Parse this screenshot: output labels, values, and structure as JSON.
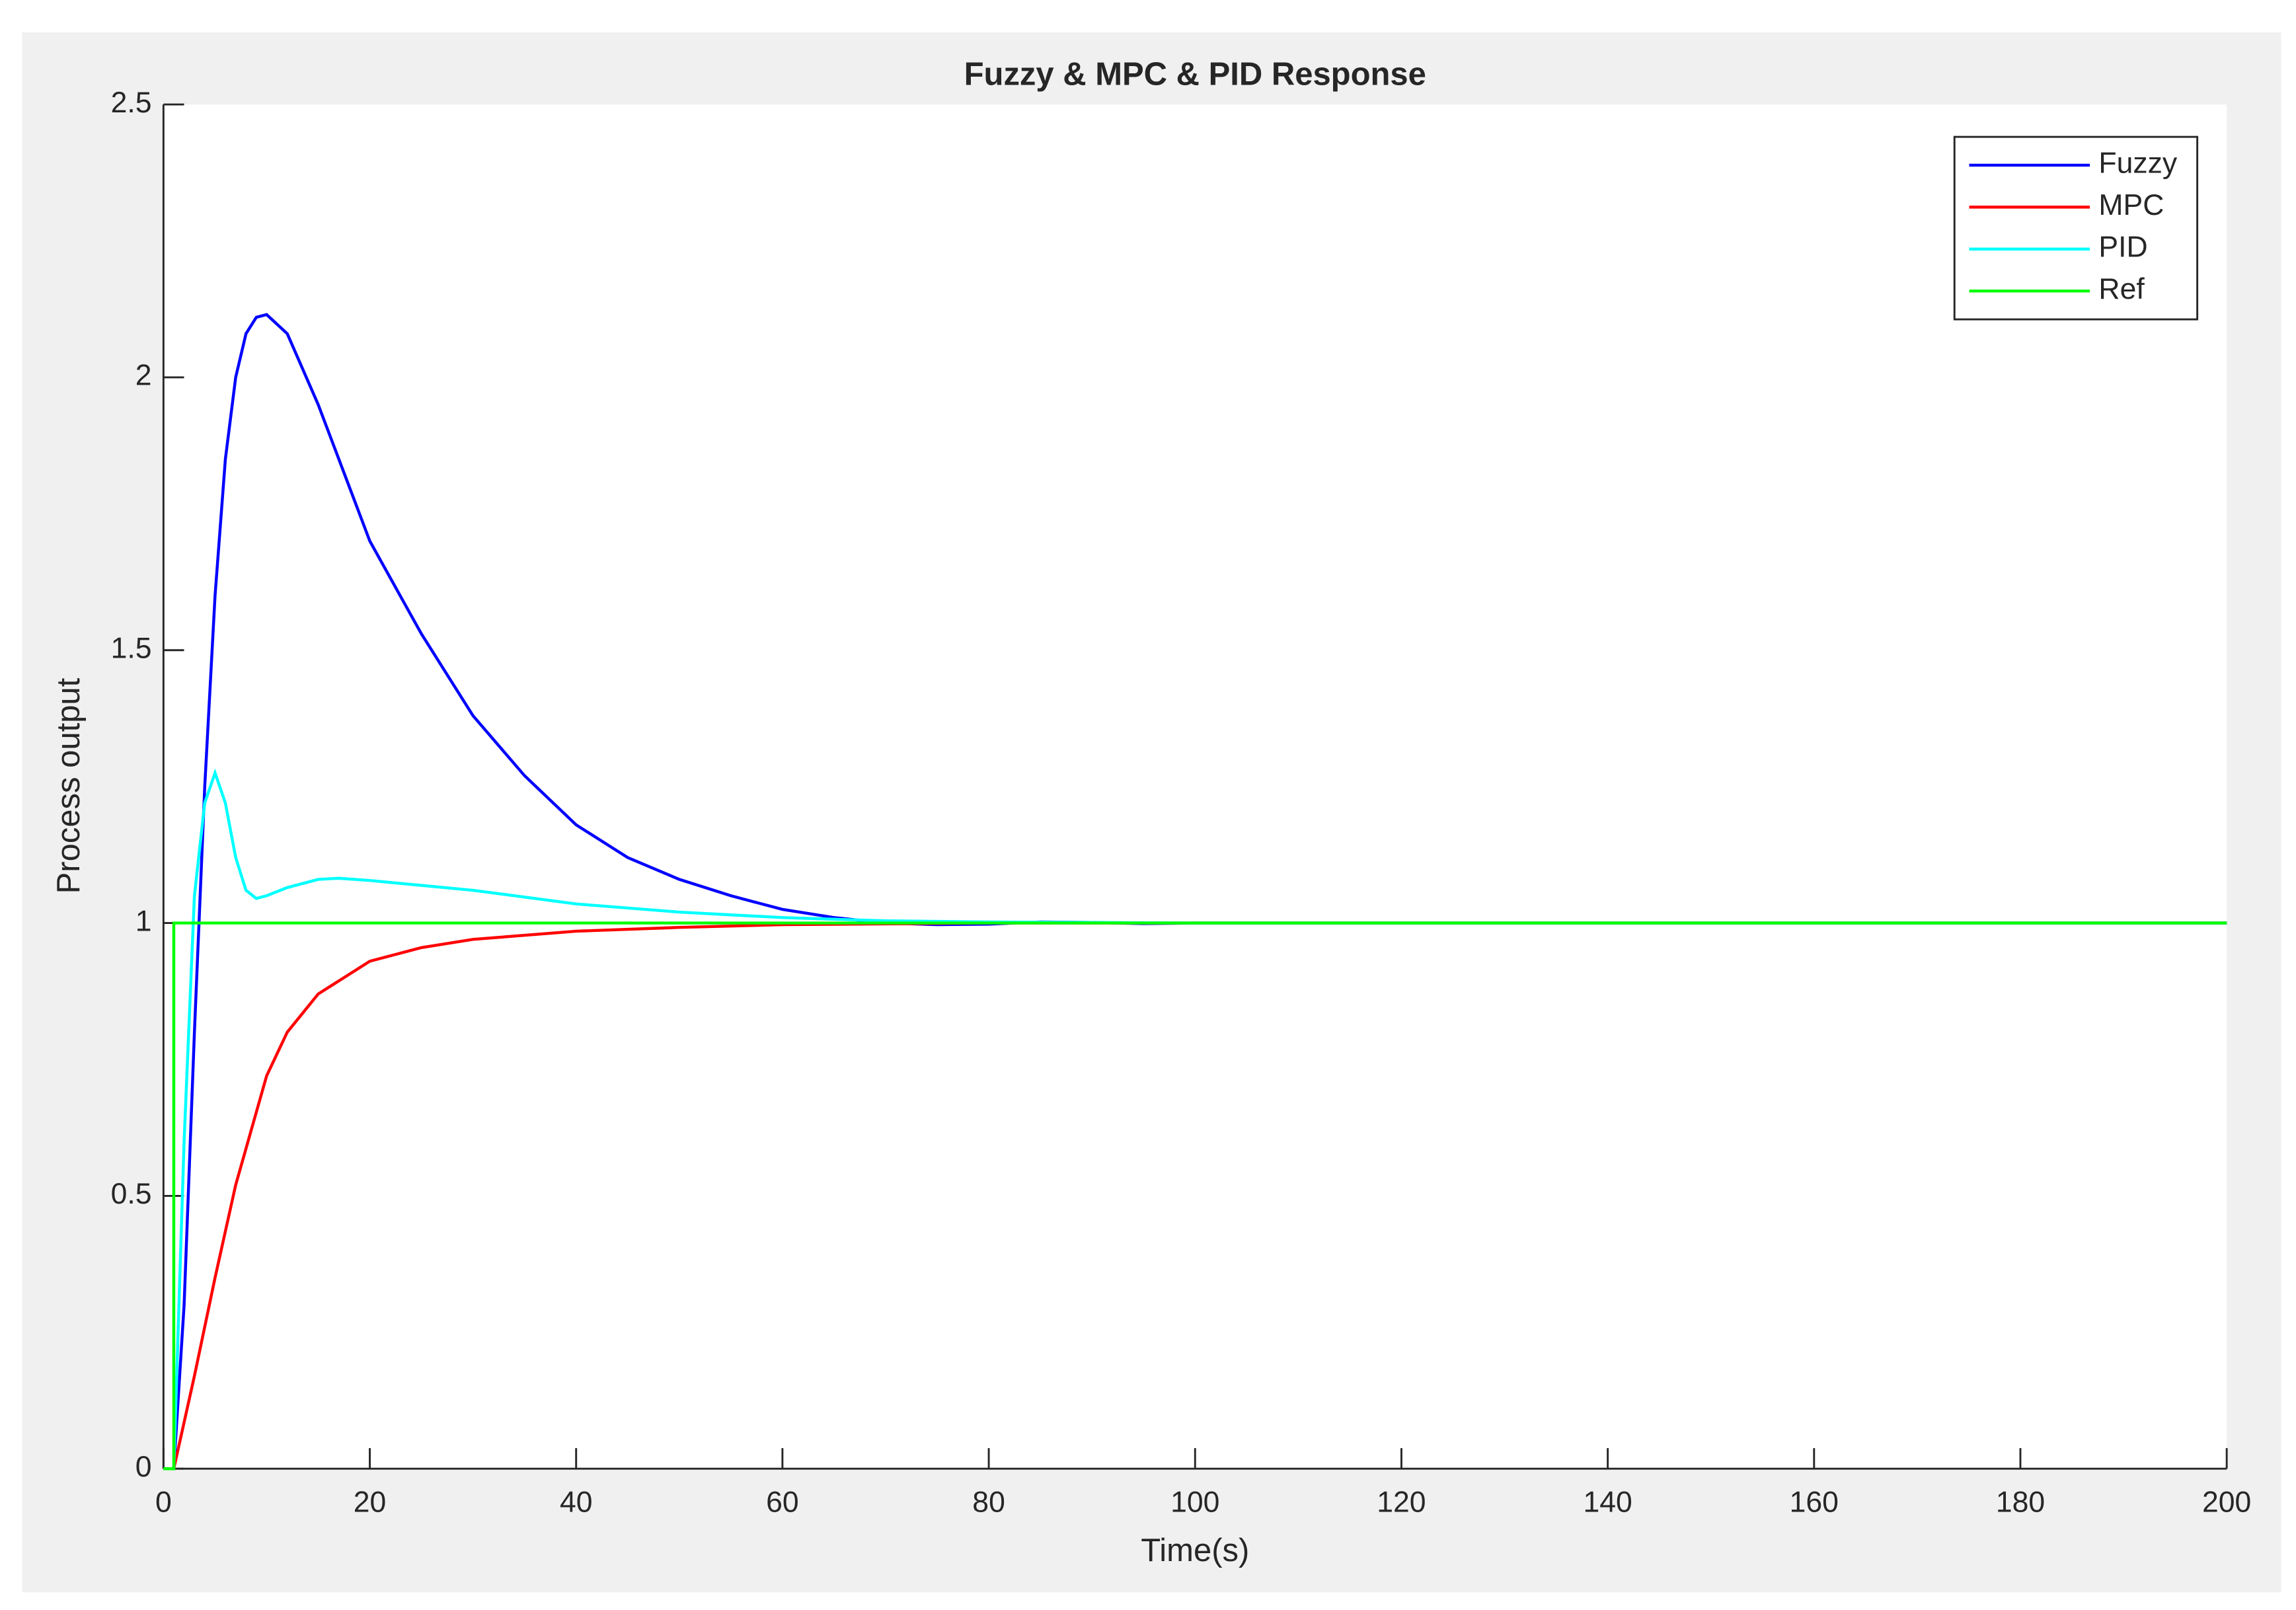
{
  "chart_data": {
    "type": "line",
    "title": "Fuzzy & MPC & PID Response",
    "x_label": "Time(s)",
    "y_label": "Process output",
    "xlim": [
      0,
      200
    ],
    "xticks": [
      0,
      20,
      40,
      60,
      80,
      100,
      120,
      140,
      160,
      180,
      200
    ],
    "ylim": [
      0,
      2.5
    ],
    "yticks": [
      0,
      0.5,
      1,
      1.5,
      2,
      2.5
    ],
    "grid": false,
    "legend": "upper right",
    "series": [
      {
        "name": "Fuzzy",
        "color": "#0000ff",
        "x": [
          0,
          1,
          2,
          3,
          4,
          5,
          6,
          7,
          8,
          9,
          10,
          12,
          15,
          20,
          25,
          30,
          35,
          40,
          45,
          50,
          55,
          60,
          65,
          70,
          75,
          80,
          85,
          90,
          95,
          100,
          120,
          150,
          200
        ],
        "values": [
          0,
          0,
          0.3,
          0.8,
          1.25,
          1.6,
          1.85,
          2.0,
          2.08,
          2.11,
          2.115,
          2.08,
          1.95,
          1.7,
          1.53,
          1.38,
          1.27,
          1.18,
          1.12,
          1.08,
          1.05,
          1.025,
          1.01,
          1.0,
          0.997,
          0.998,
          1.002,
          1.001,
          0.999,
          1.0,
          1.0,
          1.0,
          1.0
        ]
      },
      {
        "name": "MPC",
        "color": "#ff0000",
        "x": [
          0,
          1,
          3,
          5,
          7,
          10,
          12,
          15,
          20,
          25,
          30,
          40,
          50,
          60,
          80,
          200
        ],
        "values": [
          0,
          0,
          0.17,
          0.35,
          0.52,
          0.72,
          0.8,
          0.87,
          0.93,
          0.955,
          0.97,
          0.985,
          0.992,
          0.997,
          1.0,
          1.0
        ]
      },
      {
        "name": "PID",
        "color": "#00ffff",
        "x": [
          0,
          1,
          2,
          3,
          4,
          5,
          6,
          7,
          8,
          9,
          10,
          12,
          15,
          17,
          20,
          30,
          40,
          50,
          60,
          70,
          80,
          100,
          200
        ],
        "values": [
          0,
          0,
          0.6,
          1.05,
          1.22,
          1.275,
          1.22,
          1.12,
          1.06,
          1.045,
          1.05,
          1.065,
          1.08,
          1.082,
          1.078,
          1.06,
          1.035,
          1.02,
          1.01,
          1.004,
          1.002,
          1.0,
          1.0
        ]
      },
      {
        "name": "Ref",
        "color": "#00ff00",
        "x": [
          0,
          1,
          1,
          200
        ],
        "values": [
          0,
          0,
          1,
          1
        ]
      }
    ]
  }
}
